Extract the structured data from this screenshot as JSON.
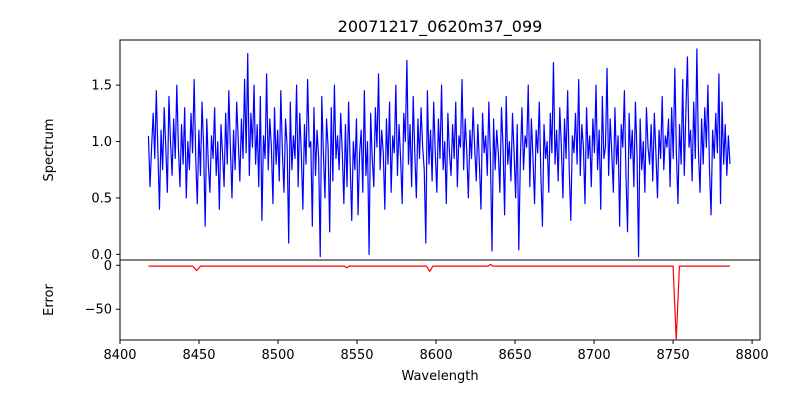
{
  "chart_data": [
    {
      "type": "line",
      "title": "20071217_0620m37_099",
      "xlabel": "",
      "ylabel": "Spectrum",
      "xlim": [
        8400,
        8805
      ],
      "ylim": [
        -0.05,
        1.9
      ],
      "yticks": [
        0.0,
        0.5,
        1.0,
        1.5
      ],
      "ytick_labels": [
        "0.0",
        "0.5",
        "1.0",
        "1.5"
      ],
      "grid": false,
      "series": [
        {
          "color": "#0000ff",
          "x_start": 8418,
          "x_end": 8786,
          "mean": 0.92,
          "values": [
            1.05,
            0.6,
            0.95,
            1.25,
            0.85,
            1.45,
            0.9,
            0.4,
            1.1,
            0.75,
            1.3,
            0.95,
            0.55,
            1.4,
            1.0,
            0.7,
            1.2,
            0.85,
            1.5,
            0.95,
            0.6,
            1.15,
            0.8,
            1.3,
            0.5,
            1.0,
            0.75,
            1.25,
            0.9,
            1.55,
            0.85,
            0.45,
            1.1,
            0.7,
            1.35,
            0.95,
            0.25,
            1.2,
            0.8,
            0.55,
            1.05,
            0.85,
            1.3,
            0.7,
            1.0,
            0.4,
            1.15,
            0.9,
            0.6,
            1.25,
            0.8,
            1.45,
            0.95,
            0.5,
            1.1,
            0.75,
            1.35,
            1.0,
            0.65,
            1.2,
            0.85,
            1.55,
            0.9,
            1.78,
            0.7,
            1.25,
            0.95,
            1.5,
            0.8,
            1.15,
            0.6,
            1.4,
            0.3,
            1.05,
            0.85,
            1.6,
            0.75,
            1.2,
            0.95,
            0.45,
            1.3,
            0.8,
            1.1,
            0.65,
            1.45,
            0.9,
            0.55,
            1.2,
            0.95,
            0.1,
            1.35,
            0.75,
            1.05,
            0.85,
            1.5,
            0.6,
            1.25,
            0.9,
            0.4,
            1.15,
            0.8,
            1.55,
            0.95,
            1.0,
            0.25,
            1.3,
            0.7,
            1.1,
            0.85,
            -0.02,
            1.4,
            0.9,
            0.5,
            1.2,
            0.95,
            0.2,
            1.3,
            0.65,
            1.5,
            0.85,
            1.05,
            0.75,
            1.25,
            0.9,
            0.45,
            1.15,
            0.6,
            1.35,
            0.8,
            0.3,
            1.0,
            0.75,
            1.2,
            0.35,
            0.9,
            1.1,
            0.55,
            1.45,
            0.7,
            1.0,
            0.0,
            1.25,
            0.85,
            0.6,
            1.3,
            0.95,
            1.6,
            0.75,
            1.1,
            0.9,
            0.4,
            1.2,
            0.8,
            1.35,
            0.55,
            1.05,
            0.9,
            1.5,
            0.7,
            1.15,
            0.85,
            0.45,
            1.25,
            1.0,
            1.72,
            0.8,
            1.15,
            0.6,
            1.4,
            0.9,
            0.5,
            1.2,
            0.85,
            1.3,
            0.95,
            0.75,
            0.1,
            1.45,
            0.8,
            1.1,
            0.65,
            1.35,
            0.9,
            0.55,
            1.2,
            0.85,
            1.5,
            0.75,
            1.0,
            0.45,
            1.25,
            0.9,
            0.7,
            1.15,
            0.85,
            1.35,
            0.6,
            1.05,
            0.95,
            1.55,
            0.75,
            1.2,
            0.9,
            0.5,
            1.1,
            0.85,
            1.3,
            0.95,
            0.65,
            1.15,
            0.8,
            0.4,
            1.25,
            0.9,
            1.05,
            0.7,
            1.35,
            0.85,
            0.03,
            1.2,
            0.75,
            1.1,
            0.9,
            0.55,
            1.3,
            0.95,
            0.35,
            1.4,
            0.8,
            1.0,
            0.65,
            1.25,
            0.9,
            0.5,
            1.15,
            0.04,
            0.85,
            1.3,
            0.75,
            1.05,
            0.95,
            1.5,
            0.6,
            1.2,
            0.85,
            0.45,
            1.1,
            0.9,
            1.35,
            0.7,
            0.25,
            1.15,
            0.85,
            1.0,
            0.55,
            1.25,
            0.9,
            1.7,
            0.8,
            1.1,
            0.65,
            1.3,
            0.95,
            0.5,
            1.2,
            0.85,
            1.45,
            0.75,
            0.3,
            1.05,
            0.9,
            1.25,
            0.8,
            1.55,
            0.7,
            1.15,
            0.95,
            0.45,
            1.3,
            0.85,
            1.05,
            0.6,
            1.2,
            0.9,
            1.5,
            0.75,
            1.1,
            0.4,
            1.4,
            0.85,
            0.95,
            1.65,
            0.7,
            1.2,
            0.9,
            0.55,
            1.3,
            0.8,
            1.05,
            0.25,
            1.15,
            0.95,
            1.45,
            0.7,
            0.2,
            1.25,
            0.85,
            1.1,
            0.6,
            1.35,
            0.9,
            -0.02,
            1.2,
            0.75,
            1.0,
            0.55,
            1.3,
            0.95,
            0.8,
            1.15,
            0.65,
            1.25,
            0.9,
            0.5,
            1.1,
            0.85,
            1.4,
            0.75,
            1.05,
            0.95,
            1.2,
            0.6,
            1.3,
            0.85,
            1.65,
            0.9,
            0.45,
            1.15,
            0.8,
            1.55,
            0.7,
            1.25,
            1.75,
            0.95,
            1.1,
            0.65,
            1.35,
            0.85,
            1.82,
            0.9,
            0.55,
            1.2,
            0.8,
            1.3,
            0.95,
            1.5,
            0.75,
            0.35,
            1.1,
            0.85,
            1.25,
            0.9,
            1.6,
            0.45,
            1.35,
            0.8,
            1.15,
            0.7,
            1.05,
            0.8
          ]
        }
      ]
    },
    {
      "type": "line",
      "title": "",
      "xlabel": "Wavelength",
      "ylabel": "Error",
      "xlim": [
        8400,
        8805
      ],
      "ylim": [
        -85,
        6
      ],
      "xticks": [
        8400,
        8450,
        8500,
        8550,
        8600,
        8650,
        8700,
        8750,
        8800
      ],
      "xtick_labels": [
        "8400",
        "8450",
        "8500",
        "8550",
        "8600",
        "8650",
        "8700",
        "8750",
        "8800"
      ],
      "yticks": [
        0,
        -50
      ],
      "ytick_labels": [
        "0",
        "−50"
      ],
      "grid": false,
      "series": [
        {
          "color": "#ff0000",
          "x": [
            8418,
            8446,
            8448.5,
            8451,
            8542,
            8543.5,
            8545,
            8594,
            8596,
            8598,
            8633,
            8634.5,
            8636,
            8750,
            8752,
            8754,
            8786
          ],
          "values": [
            -1,
            -1,
            -6,
            -1,
            -1,
            -3,
            -1,
            -1,
            -7,
            -1,
            -1,
            1,
            -1,
            -1,
            -85,
            -1,
            -1
          ]
        }
      ]
    }
  ]
}
